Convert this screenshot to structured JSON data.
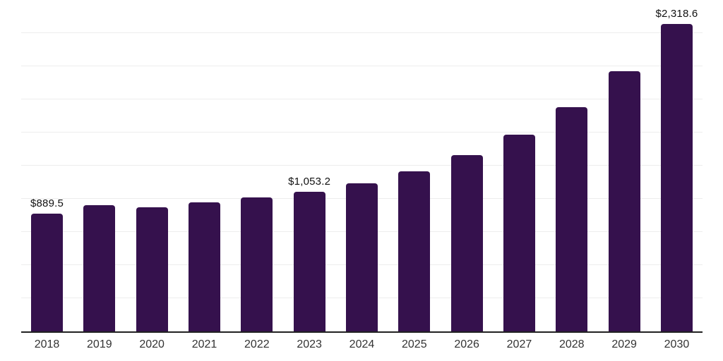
{
  "chart_data": {
    "type": "bar",
    "title": "",
    "xlabel": "",
    "ylabel": "",
    "categories": [
      "2018",
      "2019",
      "2020",
      "2021",
      "2022",
      "2023",
      "2024",
      "2025",
      "2026",
      "2027",
      "2028",
      "2029",
      "2030"
    ],
    "values": [
      889.5,
      953.0,
      937.0,
      971.5,
      1008.5,
      1053.2,
      1119.5,
      1209.5,
      1331.0,
      1484.0,
      1690.0,
      1964.5,
      2318.6
    ],
    "data_labels": [
      "$889.5",
      "",
      "",
      "",
      "",
      "$1,053.2",
      "",
      "",
      "",
      "",
      "",
      "",
      "$2,318.6"
    ],
    "ylim": [
      0,
      2500
    ],
    "gridline_step": 250,
    "grid": "horizontal",
    "legend": "none",
    "y_tick_labels_visible": false
  },
  "colors": {
    "bar": "#35114d",
    "axis_line": "#212121",
    "gridline": "#ededed",
    "tick_label": "#333333",
    "data_label": "#111111",
    "background": "#ffffff"
  }
}
